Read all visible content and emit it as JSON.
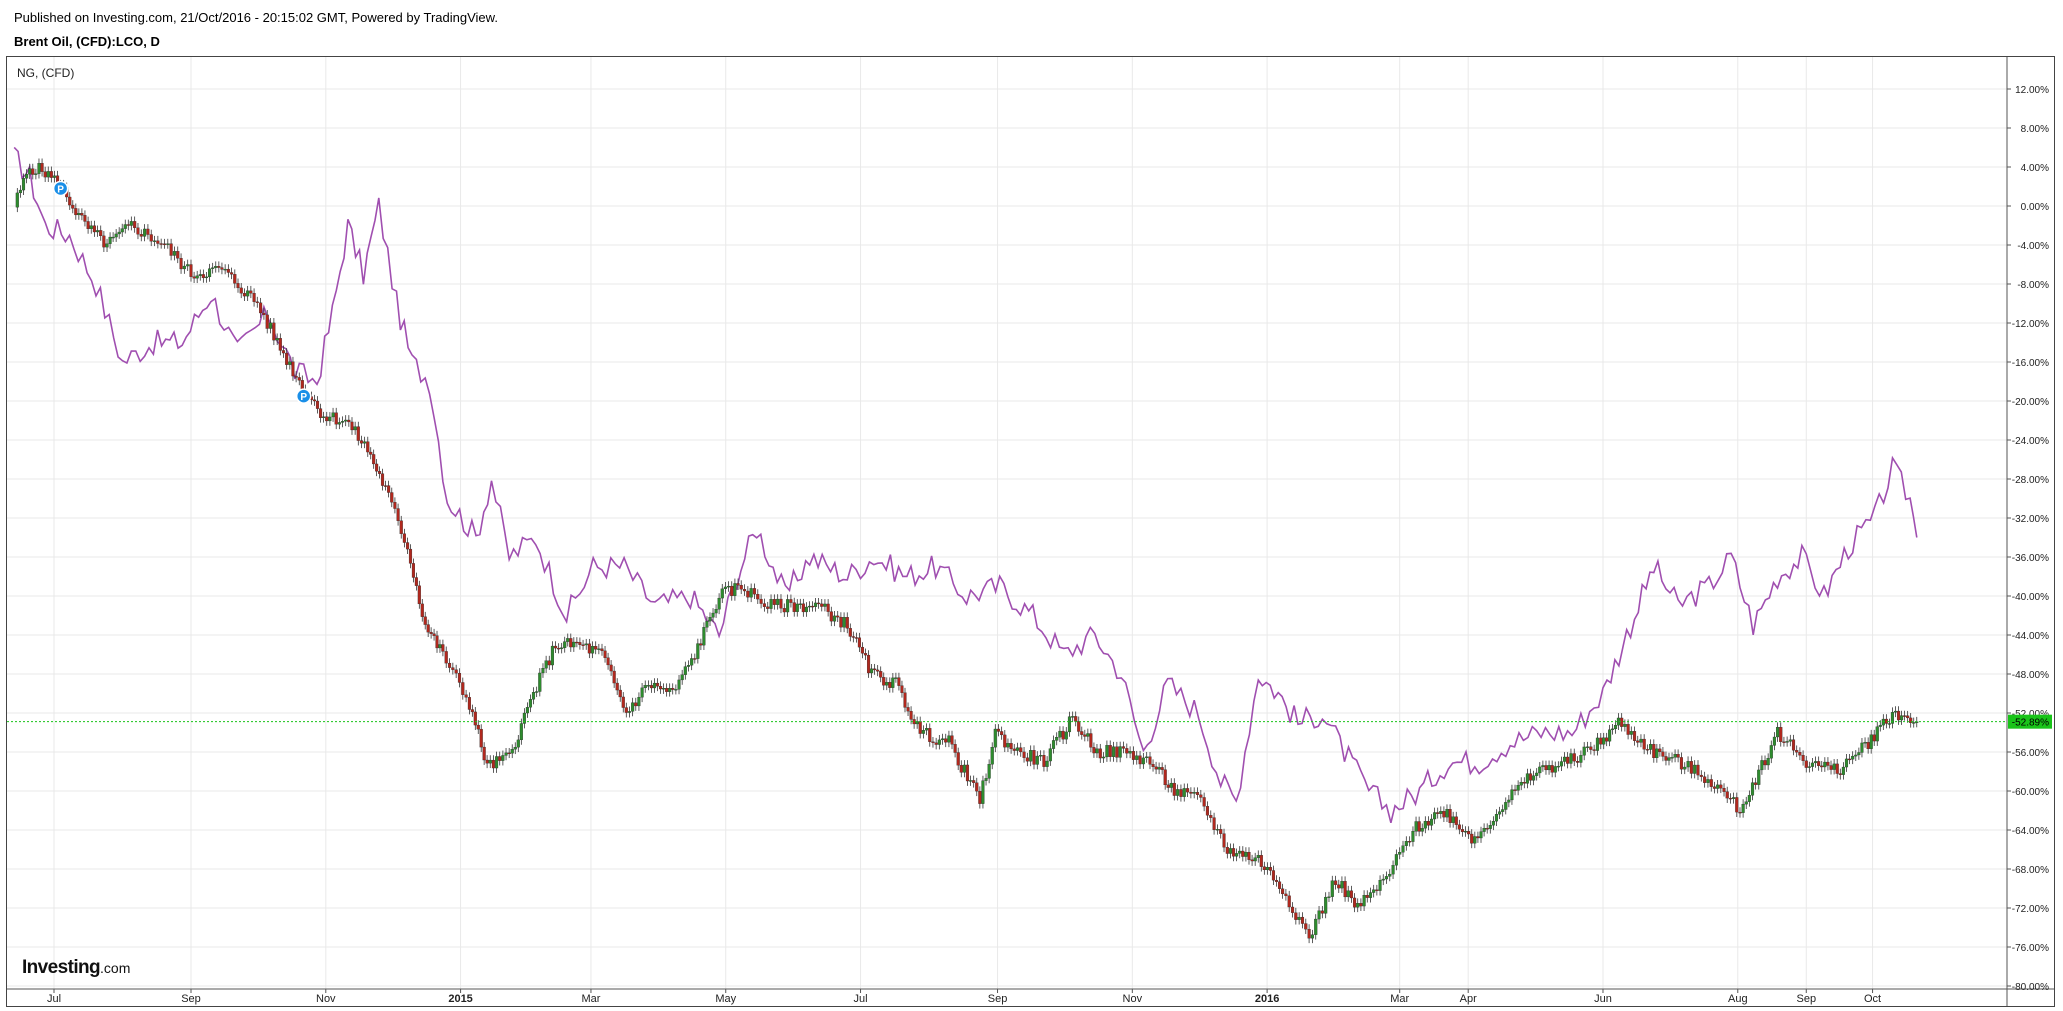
{
  "header": {
    "published": "Published on Investing.com, 21/Oct/2016 - 20:15:02 GMT, Powered by TradingView.",
    "symbol": "Brent Oil, (CFD):LCO, D"
  },
  "comparison_label": "NG,  (CFD)",
  "logo": {
    "name": "Investing",
    "suffix": ".com"
  },
  "colors": {
    "up": "#2e8b2e",
    "down": "#b0281e",
    "compare_line": "#a04fb0",
    "current_line": "#19c419",
    "current_badge": "#19c419",
    "grid": "#e9e9e9"
  },
  "chart_data": {
    "type": "line",
    "title": "Brent Oil, (CFD):LCO, D",
    "ylabel": "",
    "y_unit": "%",
    "ylim": [
      -80,
      14
    ],
    "grid": true,
    "y_ticks": [
      "12.00%",
      "8.00%",
      "4.00%",
      "0.00%",
      "-4.00%",
      "-8.00%",
      "-12.00%",
      "-16.00%",
      "-20.00%",
      "-24.00%",
      "-28.00%",
      "-32.00%",
      "-36.00%",
      "-40.00%",
      "-44.00%",
      "-48.00%",
      "-52.00%",
      "-56.00%",
      "-60.00%",
      "-64.00%",
      "-68.00%",
      "-72.00%",
      "-76.00%",
      "-80.00%"
    ],
    "y_tick_values": [
      12,
      8,
      4,
      0,
      -4,
      -8,
      -12,
      -16,
      -20,
      -24,
      -28,
      -32,
      -36,
      -40,
      -44,
      -48,
      -52,
      -56,
      -60,
      -64,
      -68,
      -72,
      -76,
      -80
    ],
    "x_ticks": [
      {
        "label": "Jul",
        "date": "2014-07-01",
        "bold": false
      },
      {
        "label": "Sep",
        "date": "2014-09-01",
        "bold": false
      },
      {
        "label": "Nov",
        "date": "2014-11-01",
        "bold": false
      },
      {
        "label": "2015",
        "date": "2015-01-01",
        "bold": true
      },
      {
        "label": "Mar",
        "date": "2015-03-01",
        "bold": false
      },
      {
        "label": "May",
        "date": "2015-05-01",
        "bold": false
      },
      {
        "label": "Jul",
        "date": "2015-07-01",
        "bold": false
      },
      {
        "label": "Sep",
        "date": "2015-09-01",
        "bold": false
      },
      {
        "label": "Nov",
        "date": "2015-11-01",
        "bold": false
      },
      {
        "label": "2016",
        "date": "2016-01-01",
        "bold": true
      },
      {
        "label": "Mar",
        "date": "2016-03-01",
        "bold": false
      },
      {
        "label": "Apr",
        "date": "2016-04-01",
        "bold": false
      },
      {
        "label": "Jun",
        "date": "2016-06-01",
        "bold": false
      },
      {
        "label": "Aug",
        "date": "2016-08-01",
        "bold": false
      },
      {
        "label": "Sep",
        "date": "2016-09-01",
        "bold": false
      },
      {
        "label": "Oct",
        "date": "2016-10-01",
        "bold": false
      }
    ],
    "current_value": -52.89,
    "current_label": "-52.89%",
    "markers": [
      {
        "label": "P",
        "date": "2014-07-04",
        "value": 1.8
      },
      {
        "label": "P",
        "date": "2014-10-22",
        "value": -19.5
      }
    ],
    "series": [
      {
        "type": "candlestick",
        "points": [
          {
            "date": "2014-06-13",
            "close": 0
          },
          {
            "date": "2014-06-20",
            "close": 4
          },
          {
            "date": "2014-06-27",
            "close": 3.5
          },
          {
            "date": "2014-07-04",
            "close": 2
          },
          {
            "date": "2014-07-15",
            "close": -2
          },
          {
            "date": "2014-07-25",
            "close": -4
          },
          {
            "date": "2014-08-05",
            "close": -2
          },
          {
            "date": "2014-08-20",
            "close": -4
          },
          {
            "date": "2014-09-01",
            "close": -7
          },
          {
            "date": "2014-09-15",
            "close": -6.5
          },
          {
            "date": "2014-10-01",
            "close": -10
          },
          {
            "date": "2014-10-10",
            "close": -14
          },
          {
            "date": "2014-10-20",
            "close": -18
          },
          {
            "date": "2014-10-31",
            "close": -21.5
          },
          {
            "date": "2014-11-10",
            "close": -22
          },
          {
            "date": "2014-11-20",
            "close": -25
          },
          {
            "date": "2014-11-28",
            "close": -29
          },
          {
            "date": "2014-12-08",
            "close": -35
          },
          {
            "date": "2014-12-16",
            "close": -43
          },
          {
            "date": "2014-12-24",
            "close": -46
          },
          {
            "date": "2015-01-05",
            "close": -51
          },
          {
            "date": "2015-01-13",
            "close": -57.5
          },
          {
            "date": "2015-01-23",
            "close": -56.5
          },
          {
            "date": "2015-02-03",
            "close": -50
          },
          {
            "date": "2015-02-13",
            "close": -45
          },
          {
            "date": "2015-02-24",
            "close": -45
          },
          {
            "date": "2015-03-06",
            "close": -46
          },
          {
            "date": "2015-03-17",
            "close": -52
          },
          {
            "date": "2015-03-27",
            "close": -49
          },
          {
            "date": "2015-04-07",
            "close": -50
          },
          {
            "date": "2015-04-17",
            "close": -46
          },
          {
            "date": "2015-04-28",
            "close": -40
          },
          {
            "date": "2015-05-08",
            "close": -39
          },
          {
            "date": "2015-05-20",
            "close": -41
          },
          {
            "date": "2015-06-01",
            "close": -41
          },
          {
            "date": "2015-06-12",
            "close": -41
          },
          {
            "date": "2015-06-25",
            "close": -43
          },
          {
            "date": "2015-07-06",
            "close": -48
          },
          {
            "date": "2015-07-17",
            "close": -49
          },
          {
            "date": "2015-07-28",
            "close": -54
          },
          {
            "date": "2015-08-10",
            "close": -55
          },
          {
            "date": "2015-08-24",
            "close": -61
          },
          {
            "date": "2015-08-31",
            "close": -54
          },
          {
            "date": "2015-09-10",
            "close": -56
          },
          {
            "date": "2015-09-22",
            "close": -57
          },
          {
            "date": "2015-10-05",
            "close": -52.5
          },
          {
            "date": "2015-10-16",
            "close": -56
          },
          {
            "date": "2015-10-28",
            "close": -56
          },
          {
            "date": "2015-11-09",
            "close": -57
          },
          {
            "date": "2015-11-20",
            "close": -60
          },
          {
            "date": "2015-12-02",
            "close": -61
          },
          {
            "date": "2015-12-14",
            "close": -66
          },
          {
            "date": "2015-12-28",
            "close": -67
          },
          {
            "date": "2016-01-08",
            "close": -70
          },
          {
            "date": "2016-01-20",
            "close": -75
          },
          {
            "date": "2016-02-01",
            "close": -69
          },
          {
            "date": "2016-02-11",
            "close": -72
          },
          {
            "date": "2016-02-24",
            "close": -69
          },
          {
            "date": "2016-03-07",
            "close": -64
          },
          {
            "date": "2016-03-21",
            "close": -62
          },
          {
            "date": "2016-04-04",
            "close": -65
          },
          {
            "date": "2016-04-18",
            "close": -61
          },
          {
            "date": "2016-05-02",
            "close": -58
          },
          {
            "date": "2016-05-16",
            "close": -57
          },
          {
            "date": "2016-05-31",
            "close": -55
          },
          {
            "date": "2016-06-08",
            "close": -53
          },
          {
            "date": "2016-06-24",
            "close": -56
          },
          {
            "date": "2016-07-05",
            "close": -57
          },
          {
            "date": "2016-07-20",
            "close": -59
          },
          {
            "date": "2016-08-02",
            "close": -62
          },
          {
            "date": "2016-08-19",
            "close": -54
          },
          {
            "date": "2016-09-01",
            "close": -57
          },
          {
            "date": "2016-09-15",
            "close": -58
          },
          {
            "date": "2016-09-29",
            "close": -55
          },
          {
            "date": "2016-10-10",
            "close": -52
          },
          {
            "date": "2016-10-21",
            "close": -52.9
          }
        ]
      },
      {
        "type": "line",
        "color": "#a04fb0",
        "points": [
          {
            "date": "2014-06-13",
            "close": 5
          },
          {
            "date": "2014-06-20",
            "close": 3
          },
          {
            "date": "2014-06-27",
            "close": -2
          },
          {
            "date": "2014-07-08",
            "close": -3
          },
          {
            "date": "2014-07-20",
            "close": -8
          },
          {
            "date": "2014-08-01",
            "close": -16
          },
          {
            "date": "2014-08-15",
            "close": -14
          },
          {
            "date": "2014-08-28",
            "close": -14
          },
          {
            "date": "2014-09-10",
            "close": -9
          },
          {
            "date": "2014-09-22",
            "close": -15
          },
          {
            "date": "2014-10-06",
            "close": -11
          },
          {
            "date": "2014-10-18",
            "close": -17
          },
          {
            "date": "2014-10-28",
            "close": -18
          },
          {
            "date": "2014-11-04",
            "close": -11
          },
          {
            "date": "2014-11-11",
            "close": -2
          },
          {
            "date": "2014-11-18",
            "close": -7
          },
          {
            "date": "2014-11-25",
            "close": 0
          },
          {
            "date": "2014-12-03",
            "close": -10
          },
          {
            "date": "2014-12-10",
            "close": -16
          },
          {
            "date": "2014-12-18",
            "close": -18
          },
          {
            "date": "2014-12-26",
            "close": -30
          },
          {
            "date": "2015-01-08",
            "close": -34
          },
          {
            "date": "2015-01-15",
            "close": -28
          },
          {
            "date": "2015-01-23",
            "close": -36
          },
          {
            "date": "2015-02-04",
            "close": -34
          },
          {
            "date": "2015-02-18",
            "close": -42
          },
          {
            "date": "2015-03-02",
            "close": -37
          },
          {
            "date": "2015-03-16",
            "close": -37
          },
          {
            "date": "2015-03-30",
            "close": -41
          },
          {
            "date": "2015-04-15",
            "close": -40
          },
          {
            "date": "2015-04-28",
            "close": -44
          },
          {
            "date": "2015-05-06",
            "close": -38
          },
          {
            "date": "2015-05-15",
            "close": -33
          },
          {
            "date": "2015-05-28",
            "close": -40
          },
          {
            "date": "2015-06-08",
            "close": -36
          },
          {
            "date": "2015-06-25",
            "close": -38
          },
          {
            "date": "2015-07-07",
            "close": -36
          },
          {
            "date": "2015-07-22",
            "close": -38
          },
          {
            "date": "2015-08-04",
            "close": -37
          },
          {
            "date": "2015-08-18",
            "close": -40
          },
          {
            "date": "2015-09-02",
            "close": -39
          },
          {
            "date": "2015-09-17",
            "close": -42
          },
          {
            "date": "2015-10-01",
            "close": -46
          },
          {
            "date": "2015-10-15",
            "close": -44
          },
          {
            "date": "2015-10-27",
            "close": -48
          },
          {
            "date": "2015-11-06",
            "close": -56
          },
          {
            "date": "2015-11-17",
            "close": -49
          },
          {
            "date": "2015-12-01",
            "close": -52
          },
          {
            "date": "2015-12-11",
            "close": -59
          },
          {
            "date": "2015-12-18",
            "close": -61
          },
          {
            "date": "2015-12-28",
            "close": -48
          },
          {
            "date": "2016-01-06",
            "close": -50
          },
          {
            "date": "2016-01-15",
            "close": -53
          },
          {
            "date": "2016-01-26",
            "close": -52
          },
          {
            "date": "2016-02-05",
            "close": -56
          },
          {
            "date": "2016-02-16",
            "close": -60
          },
          {
            "date": "2016-02-26",
            "close": -62
          },
          {
            "date": "2016-03-10",
            "close": -60
          },
          {
            "date": "2016-03-23",
            "close": -57
          },
          {
            "date": "2016-04-06",
            "close": -57
          },
          {
            "date": "2016-04-20",
            "close": -55
          },
          {
            "date": "2016-05-04",
            "close": -54
          },
          {
            "date": "2016-05-18",
            "close": -54
          },
          {
            "date": "2016-06-01",
            "close": -50
          },
          {
            "date": "2016-06-10",
            "close": -45
          },
          {
            "date": "2016-06-17",
            "close": -41
          },
          {
            "date": "2016-06-24",
            "close": -37
          },
          {
            "date": "2016-07-05",
            "close": -41
          },
          {
            "date": "2016-07-19",
            "close": -39
          },
          {
            "date": "2016-07-29",
            "close": -36
          },
          {
            "date": "2016-08-08",
            "close": -43
          },
          {
            "date": "2016-08-19",
            "close": -38
          },
          {
            "date": "2016-08-30",
            "close": -36
          },
          {
            "date": "2016-09-09",
            "close": -40
          },
          {
            "date": "2016-09-20",
            "close": -35
          },
          {
            "date": "2016-10-02",
            "close": -32
          },
          {
            "date": "2016-10-10",
            "close": -27
          },
          {
            "date": "2016-10-18",
            "close": -30
          },
          {
            "date": "2016-10-21",
            "close": -34
          }
        ]
      }
    ]
  }
}
